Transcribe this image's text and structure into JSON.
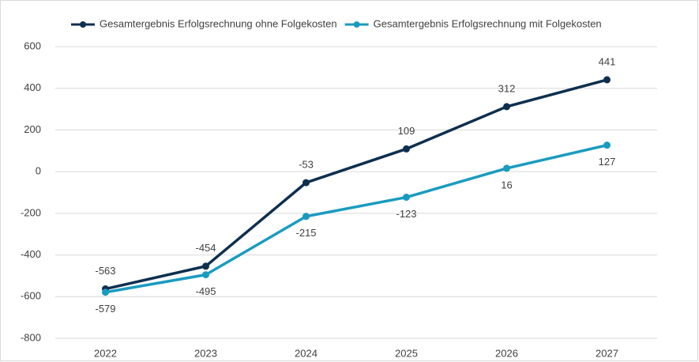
{
  "chart_data": {
    "type": "line",
    "categories": [
      "2022",
      "2023",
      "2024",
      "2025",
      "2026",
      "2027"
    ],
    "series": [
      {
        "name": "Gesamtergebnis Erfolgsrechnung ohne Folgekosten",
        "color": "#0e2f4f",
        "values": [
          -563,
          -454,
          -53,
          109,
          312,
          441
        ]
      },
      {
        "name": "Gesamtergebnis Erfolgsrechnung mit Folgekosten",
        "color": "#1a9bc0",
        "values": [
          -579,
          -495,
          -215,
          -123,
          16,
          127
        ]
      }
    ],
    "ylim": [
      -800,
      600
    ],
    "yticks": [
      -800,
      -600,
      -400,
      -200,
      0,
      200,
      400,
      600
    ],
    "grid": true,
    "legend": "top"
  }
}
